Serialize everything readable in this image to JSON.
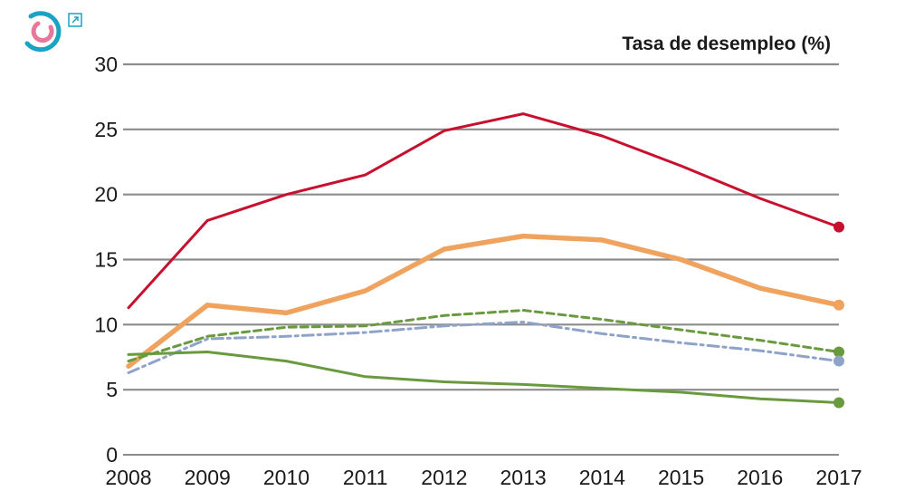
{
  "colors": {
    "red": "#c8102e",
    "orange": "#f0a35e",
    "green": "#6a9a3f",
    "blue": "#8fa3c9",
    "grid": "#8c8c8c",
    "logo_teal": "#1aa3c4",
    "logo_pink": "#e8779a"
  },
  "icons": {
    "logo": "circular-logo-icon",
    "external": "external-link-icon"
  },
  "chart_data": {
    "type": "line",
    "title": "",
    "ylabel": "Tasa de desempleo (%)",
    "xlabel": "",
    "x": [
      "2008",
      "2009",
      "2010",
      "2011",
      "2012",
      "2013",
      "2014",
      "2015",
      "2016",
      "2017"
    ],
    "ylim": [
      0,
      30
    ],
    "yticks": [
      "0",
      "5",
      "10",
      "15",
      "20",
      "25",
      "30"
    ],
    "grid": true,
    "series": [
      {
        "key": "red",
        "style": "solid-thin",
        "color": "#c8102e",
        "end_marker": true,
        "values": [
          11.3,
          18.0,
          20.0,
          21.5,
          24.9,
          26.2,
          24.5,
          22.2,
          19.7,
          17.5
        ]
      },
      {
        "key": "orange",
        "style": "solid-thick",
        "color": "#f0a35e",
        "end_marker": true,
        "values": [
          6.8,
          11.5,
          10.9,
          12.6,
          15.8,
          16.8,
          16.5,
          15.0,
          12.8,
          11.5
        ]
      },
      {
        "key": "green-dashed",
        "style": "dashed",
        "color": "#6a9a3f",
        "end_marker": true,
        "values": [
          7.2,
          9.1,
          9.8,
          9.9,
          10.7,
          11.1,
          10.4,
          9.6,
          8.8,
          7.9
        ]
      },
      {
        "key": "blue-dashdot",
        "style": "dashdot",
        "color": "#8fa3c9",
        "end_marker": true,
        "values": [
          6.3,
          8.9,
          9.1,
          9.4,
          9.9,
          10.2,
          9.3,
          8.6,
          8.0,
          7.2
        ]
      },
      {
        "key": "green-solid",
        "style": "solid-thin",
        "color": "#6a9a3f",
        "end_marker": true,
        "values": [
          7.7,
          7.9,
          7.2,
          6.0,
          5.6,
          5.4,
          5.1,
          4.8,
          4.3,
          4.0
        ]
      }
    ]
  }
}
